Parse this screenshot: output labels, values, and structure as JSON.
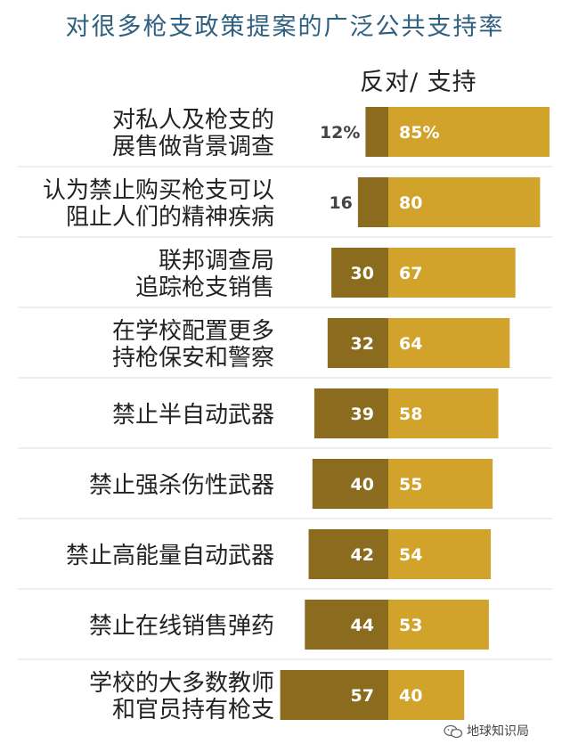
{
  "title": "对很多枪支政策提案的广泛公共支持率",
  "legend_label": "反对/ 支持",
  "watermark": "地球知识局",
  "colors": {
    "oppose": "#8b6c1f",
    "support": "#d2a32b",
    "label_text": "#222222",
    "value_text": "#ffffff",
    "outside_value_text": "#444444",
    "divider": "#dddddd"
  },
  "chart_data": {
    "type": "bar",
    "orientation": "horizontal-diverging",
    "title": "对很多枪支政策提案的广泛公共支持率",
    "series": [
      {
        "name": "反对",
        "values": [
          12,
          16,
          30,
          32,
          39,
          40,
          42,
          44,
          57
        ]
      },
      {
        "name": "支持",
        "values": [
          85,
          80,
          67,
          64,
          58,
          55,
          54,
          53,
          40
        ]
      }
    ],
    "categories": [
      [
        "对私人及枪支的",
        "展售做背景调查"
      ],
      [
        "认为禁止购买枪支可以",
        "阻止人们的精神疾病"
      ],
      [
        "联邦调查局",
        "追踪枪支销售"
      ],
      [
        "在学校配置更多",
        "持枪保安和警察"
      ],
      [
        "禁止半自动武器"
      ],
      [
        "禁止强杀伤性武器"
      ],
      [
        "禁止高能量自动武器"
      ],
      [
        "禁止在线销售弹药"
      ],
      [
        "学校的大多数教师",
        "和官员持有枪支"
      ]
    ],
    "value_labels": {
      "oppose": [
        "12%",
        "16",
        "30",
        "32",
        "39",
        "40",
        "42",
        "44",
        "57"
      ],
      "support": [
        "85%",
        "80",
        "67",
        "64",
        "58",
        "55",
        "54",
        "53",
        "40"
      ]
    }
  }
}
